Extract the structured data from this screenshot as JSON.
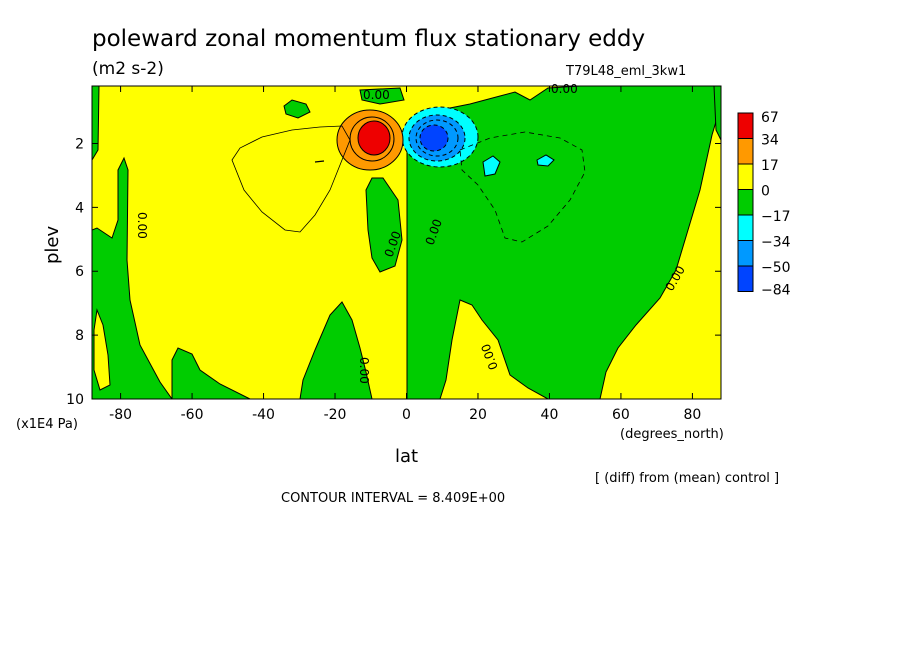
{
  "chart_data": {
    "type": "heatmap",
    "title": "poleward zonal momentum flux stationary eddy",
    "units": "(m2 s-2)",
    "experiment": "T79L48_eml_3kw1",
    "xlabel": "lat",
    "xunits": "(degrees_north)",
    "ylabel": "plev",
    "yunits": "(x1E4 Pa)",
    "xlim": [
      -88,
      88
    ],
    "ylim": [
      10,
      0.2
    ],
    "x_ticks": [
      -80,
      -60,
      -40,
      -20,
      0,
      20,
      40,
      60,
      80
    ],
    "y_ticks": [
      2,
      4,
      6,
      8,
      10
    ],
    "colorbar": {
      "levels": [
        "67",
        "34",
        "17",
        "0",
        "−17",
        "−34",
        "−50",
        "−84"
      ],
      "colors": [
        "#ee0000",
        "#ff9900",
        "#ffff00",
        "#00cc00",
        "#00ffff",
        "#0099ff",
        "#0044ff"
      ]
    },
    "contour_labels": [
      "0.00",
      "0.00",
      "0.00",
      "0.00",
      "0.00",
      "0.00",
      "0.00",
      "0.00",
      "0.00"
    ],
    "features": [
      {
        "kind": "max",
        "lat": -10,
        "plev": 1.8,
        "value": 67
      },
      {
        "kind": "min",
        "lat": 8,
        "plev": 1.8,
        "value": -84
      }
    ],
    "contour_interval_label": "CONTOUR INTERVAL = 8.409E+00",
    "diff_note": "[ (diff) from (mean) control ]"
  }
}
